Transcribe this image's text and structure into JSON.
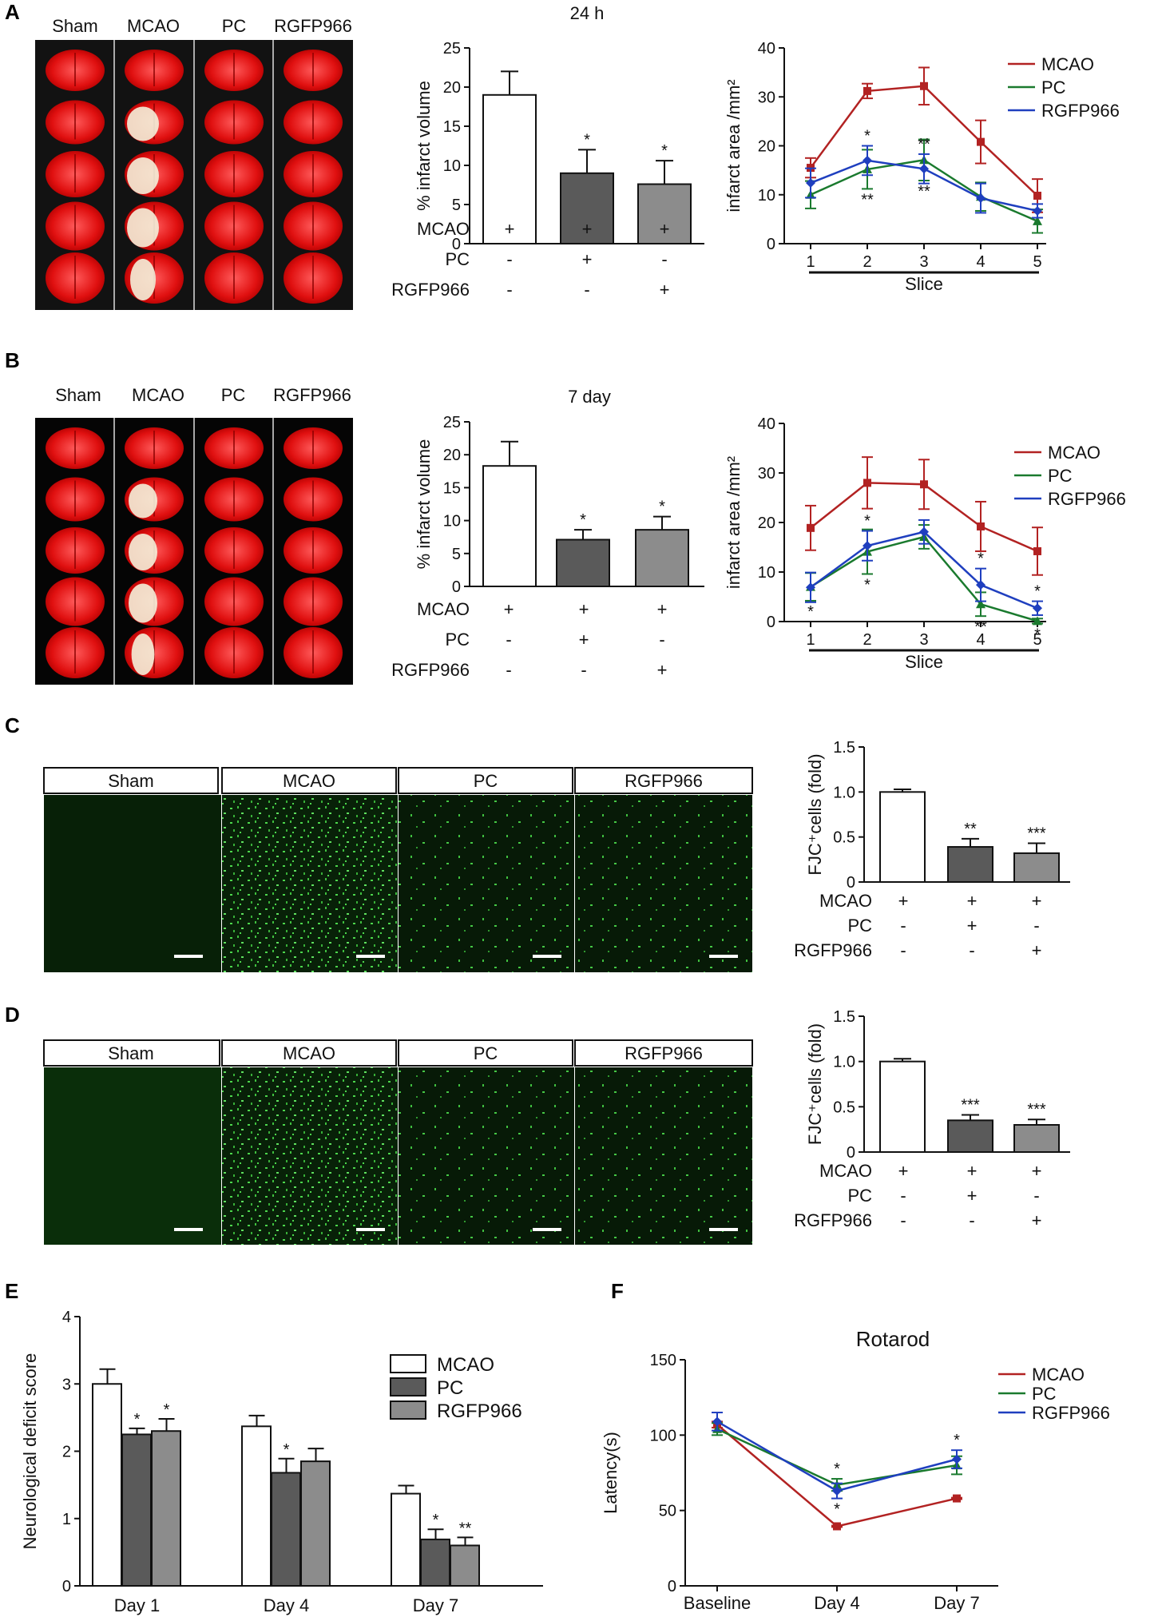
{
  "panels": {
    "A": {
      "letter": "A",
      "groups": [
        "Sham",
        "MCAO",
        "PC",
        "RGFP966"
      ],
      "bar_title": "24 h",
      "treat_rows": [
        {
          "name": "MCAO",
          "signs": [
            "+",
            "+",
            "+"
          ]
        },
        {
          "name": "PC",
          "signs": [
            "-",
            "+",
            "-"
          ]
        },
        {
          "name": "RGFP966",
          "signs": [
            "-",
            "-",
            "+"
          ]
        }
      ]
    },
    "B": {
      "letter": "B",
      "groups": [
        "Sham",
        "MCAO",
        "PC",
        "RGFP966"
      ],
      "bar_title": "7 day",
      "treat_rows": [
        {
          "name": "MCAO",
          "signs": [
            "+",
            "+",
            "+"
          ]
        },
        {
          "name": "PC",
          "signs": [
            "-",
            "+",
            "-"
          ]
        },
        {
          "name": "RGFP966",
          "signs": [
            "-",
            "-",
            "+"
          ]
        }
      ]
    },
    "C": {
      "letter": "C",
      "groups": [
        "Sham",
        "MCAO",
        "PC",
        "RGFP966"
      ],
      "treat_rows": [
        {
          "name": "MCAO",
          "signs": [
            "+",
            "+",
            "+"
          ]
        },
        {
          "name": "PC",
          "signs": [
            "-",
            "+",
            "-"
          ]
        },
        {
          "name": "RGFP966",
          "signs": [
            "-",
            "-",
            "+"
          ]
        }
      ]
    },
    "D": {
      "letter": "D",
      "groups": [
        "Sham",
        "MCAO",
        "PC",
        "RGFP966"
      ],
      "treat_rows": [
        {
          "name": "MCAO",
          "signs": [
            "+",
            "+",
            "+"
          ]
        },
        {
          "name": "PC",
          "signs": [
            "-",
            "+",
            "-"
          ]
        },
        {
          "name": "RGFP966",
          "signs": [
            "-",
            "-",
            "+"
          ]
        }
      ]
    },
    "E": {
      "letter": "E"
    },
    "F": {
      "letter": "F"
    }
  },
  "colors": {
    "mcao_line": "#b22222",
    "pc_line": "#1a7a2e",
    "rgfp_line": "#1f3fbf",
    "bar_white": "#ffffff",
    "bar_dark": "#5a5a5a",
    "bar_gray": "#8c8c8c"
  },
  "chart_data": [
    {
      "id": "A-bar",
      "type": "bar",
      "title": "24 h",
      "ylabel": "% infarct volume",
      "ylim": [
        0,
        25
      ],
      "yticks": [
        0,
        5,
        10,
        15,
        20,
        25
      ],
      "values": [
        19,
        9,
        7.6
      ],
      "errors": [
        3,
        3,
        3
      ],
      "annotations": [
        "",
        "*",
        "*"
      ]
    },
    {
      "id": "A-line",
      "type": "line",
      "xlabel": "Slice",
      "ylabel": "infarct area /mm²",
      "x": [
        1,
        2,
        3,
        4,
        5
      ],
      "ylim": [
        0,
        40
      ],
      "yticks": [
        0,
        10,
        20,
        30,
        40
      ],
      "legend_position": "top-right",
      "series": [
        {
          "name": "MCAO",
          "values": [
            15.5,
            31.2,
            32.2,
            20.8,
            9.8
          ],
          "errors": [
            2,
            1.5,
            3.8,
            4.4,
            3.4
          ]
        },
        {
          "name": "PC",
          "values": [
            10,
            15.2,
            17.1,
            9.6,
            4.6
          ],
          "errors": [
            2.8,
            4,
            4.2,
            2.9,
            2.4
          ]
        },
        {
          "name": "RGFP966",
          "values": [
            12.4,
            17,
            15.3,
            9.3,
            6.7
          ],
          "errors": [
            3,
            3,
            3,
            3,
            1.4
          ]
        }
      ],
      "annotations": [
        {
          "x": 2,
          "text": "*",
          "series": "RGFP966",
          "position": "above"
        },
        {
          "x": 2,
          "text": "**",
          "series": "PC",
          "position": "below"
        },
        {
          "x": 3,
          "text": "**",
          "series": "RGFP966",
          "position": "above"
        },
        {
          "x": 3,
          "text": "**",
          "series": "PC",
          "position": "below"
        }
      ]
    },
    {
      "id": "B-bar",
      "type": "bar",
      "title": "7 day",
      "ylabel": "% infarct volume",
      "ylim": [
        0,
        25
      ],
      "yticks": [
        0,
        5,
        10,
        15,
        20,
        25
      ],
      "values": [
        18.3,
        7.1,
        8.6
      ],
      "errors": [
        3.7,
        1.5,
        2
      ],
      "annotations": [
        "",
        "*",
        "*"
      ]
    },
    {
      "id": "B-line",
      "type": "line",
      "xlabel": "Slice",
      "ylabel": "infarct area /mm²",
      "x": [
        1,
        2,
        3,
        4,
        5
      ],
      "ylim": [
        0,
        40
      ],
      "yticks": [
        0,
        10,
        20,
        30,
        40
      ],
      "legend_position": "top-right",
      "series": [
        {
          "name": "MCAO",
          "values": [
            18.9,
            28,
            27.7,
            19.2,
            14.2
          ],
          "errors": [
            4.5,
            5.2,
            5,
            5,
            4.8
          ]
        },
        {
          "name": "PC",
          "values": [
            7,
            14.1,
            17.1,
            3.5,
            0.1
          ],
          "errors": [
            2.8,
            4.5,
            2.4,
            2.4,
            0.5
          ]
        },
        {
          "name": "RGFP966",
          "values": [
            6.9,
            15.3,
            18.1,
            7.4,
            2.7
          ],
          "errors": [
            3,
            3,
            2.4,
            3.3,
            1.4
          ]
        }
      ],
      "annotations": [
        {
          "x": 1,
          "text": "*",
          "series": "PC",
          "position": "below"
        },
        {
          "x": 2,
          "text": "*",
          "series": "RGFP966",
          "position": "above"
        },
        {
          "x": 2,
          "text": "*",
          "series": "PC",
          "position": "below"
        },
        {
          "x": 4,
          "text": "*",
          "series": "RGFP966",
          "position": "above"
        },
        {
          "x": 4,
          "text": "**",
          "series": "PC",
          "position": "below"
        },
        {
          "x": 5,
          "text": "*",
          "series": "RGFP966",
          "position": "above"
        },
        {
          "x": 5,
          "text": "*",
          "series": "PC",
          "position": "below"
        }
      ]
    },
    {
      "id": "C-bar",
      "type": "bar",
      "ylabel": "FJC⁺cells (fold)",
      "ylim": [
        0,
        1.5
      ],
      "yticks": [
        0,
        0.5,
        1.0,
        1.5
      ],
      "values": [
        1.0,
        0.39,
        0.32
      ],
      "errors": [
        0.03,
        0.09,
        0.11
      ],
      "annotations": [
        "",
        "**",
        "***"
      ]
    },
    {
      "id": "D-bar",
      "type": "bar",
      "ylabel": "FJC⁺cells (fold)",
      "ylim": [
        0,
        1.5
      ],
      "yticks": [
        0,
        0.5,
        1.0,
        1.5
      ],
      "values": [
        1.0,
        0.35,
        0.3
      ],
      "errors": [
        0.03,
        0.06,
        0.06
      ],
      "annotations": [
        "",
        "***",
        "***"
      ]
    },
    {
      "id": "E-bar",
      "type": "bar",
      "ylabel": "Neurological deficit score",
      "categories": [
        "Day 1",
        "Day 4",
        "Day 7"
      ],
      "ylim": [
        0,
        4
      ],
      "yticks": [
        0,
        1,
        2,
        3,
        4
      ],
      "legend_position": "top-right",
      "series": [
        {
          "name": "MCAO",
          "values": [
            3.0,
            2.37,
            1.37
          ],
          "errors": [
            0.22,
            0.16,
            0.12
          ],
          "annotations": [
            "",
            "",
            ""
          ]
        },
        {
          "name": "PC",
          "values": [
            2.25,
            1.68,
            0.69
          ],
          "errors": [
            0.09,
            0.21,
            0.15
          ],
          "annotations": [
            "*",
            "*",
            "*"
          ]
        },
        {
          "name": "RGFP966",
          "values": [
            2.3,
            1.85,
            0.6
          ],
          "errors": [
            0.18,
            0.19,
            0.12
          ],
          "annotations": [
            "*",
            "",
            "**"
          ]
        }
      ]
    },
    {
      "id": "F-line",
      "type": "line",
      "title": "Rotarod",
      "ylabel": "Latency(s)",
      "categories": [
        "Baseline",
        "Day 4",
        "Day 7"
      ],
      "ylim": [
        0,
        150
      ],
      "yticks": [
        0,
        50,
        100,
        150
      ],
      "legend_position": "top-right",
      "series": [
        {
          "name": "MCAO",
          "values": [
            107,
            39.5,
            58
          ],
          "errors": [
            2,
            0.5,
            0.5
          ]
        },
        {
          "name": "PC",
          "values": [
            104,
            67,
            80
          ],
          "errors": [
            4,
            4,
            6
          ]
        },
        {
          "name": "RGFP966",
          "values": [
            109,
            63,
            84
          ],
          "errors": [
            6,
            5,
            6
          ]
        }
      ],
      "annotations": [
        {
          "x": "Day 4",
          "text": "*",
          "series": "PC",
          "position": "above"
        },
        {
          "x": "Day 4",
          "text": "*",
          "series": "RGFP966",
          "position": "below"
        },
        {
          "x": "Day 7",
          "text": "*",
          "series": "RGFP966",
          "position": "above"
        }
      ]
    }
  ]
}
